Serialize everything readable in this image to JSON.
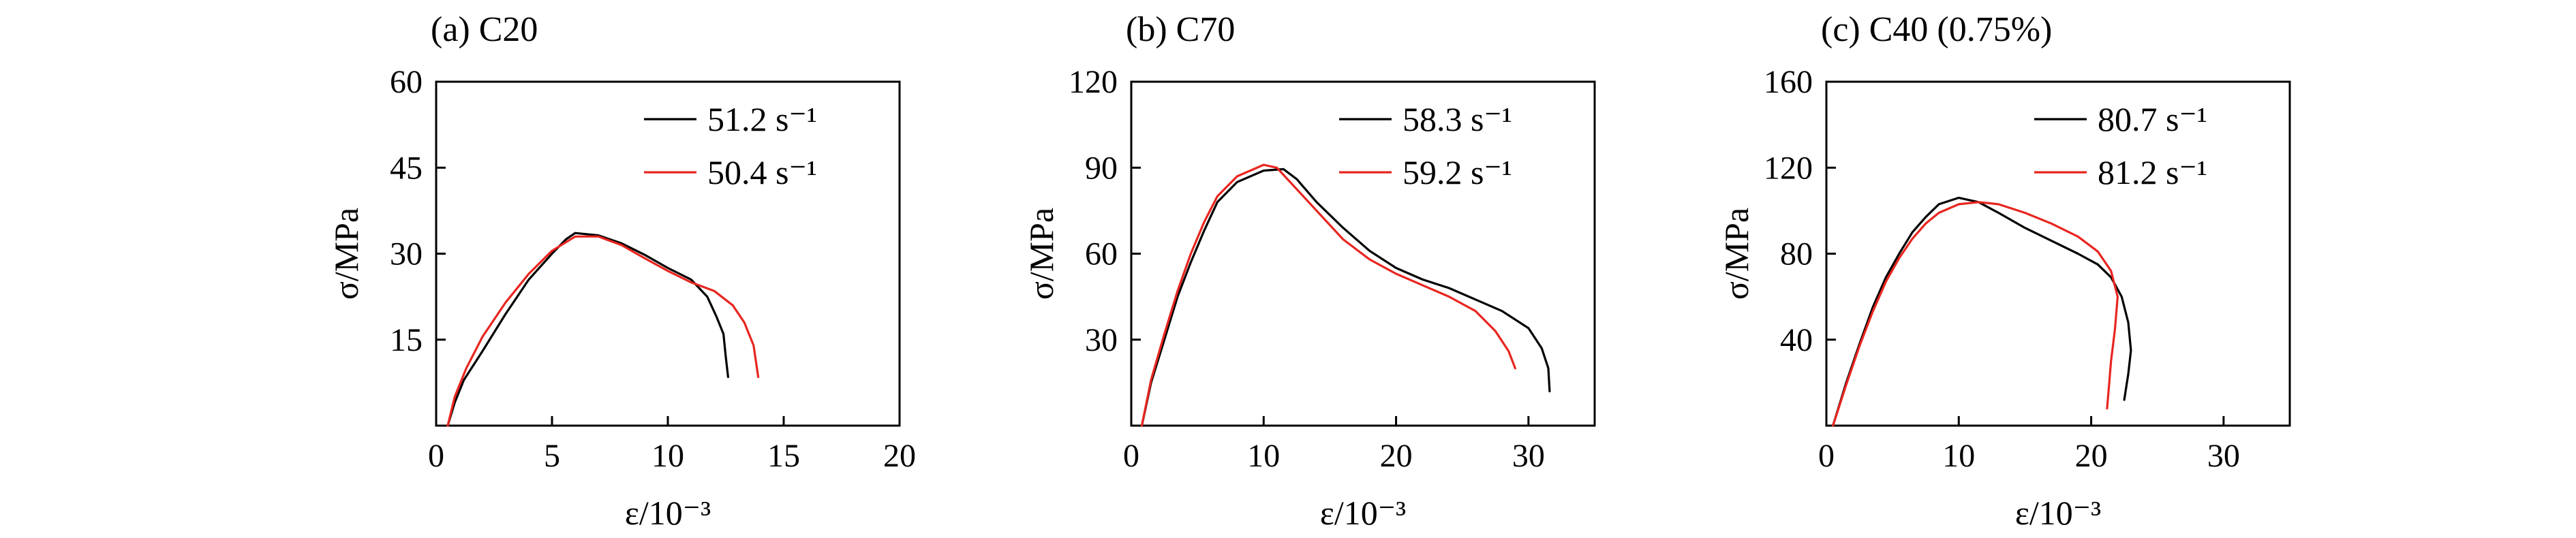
{
  "chart_data": [
    {
      "type": "line",
      "title": "(a) C20",
      "xlabel": "ε/10⁻³",
      "ylabel": "σ/MPa",
      "xlim": [
        0,
        20
      ],
      "ylim": [
        0,
        60
      ],
      "xticks": [
        0,
        5,
        10,
        15,
        20
      ],
      "yticks": [
        15,
        30,
        45,
        60
      ],
      "xtick_labels": [
        "0",
        "5",
        "10",
        "15",
        "20"
      ],
      "ytick_labels": [
        "15",
        "30",
        "45",
        "60"
      ],
      "legend_position": "top-right",
      "grid": false,
      "series": [
        {
          "name": "51.2 s⁻¹",
          "color": "#000000",
          "points": [
            [
              0.5,
              0
            ],
            [
              0.8,
              4
            ],
            [
              1.2,
              8
            ],
            [
              2,
              13
            ],
            [
              3,
              19.5
            ],
            [
              4,
              25.5
            ],
            [
              5,
              30
            ],
            [
              5.6,
              32.5
            ],
            [
              6,
              33.6
            ],
            [
              7,
              33.2
            ],
            [
              8,
              31.8
            ],
            [
              9,
              29.8
            ],
            [
              10,
              27.5
            ],
            [
              11,
              25.5
            ],
            [
              11.7,
              22.5
            ],
            [
              12.1,
              19
            ],
            [
              12.4,
              16
            ],
            [
              12.5,
              12
            ],
            [
              12.6,
              8.5
            ]
          ]
        },
        {
          "name": "50.4 s⁻¹",
          "color": "#e8251f",
          "points": [
            [
              0.5,
              0
            ],
            [
              0.8,
              5
            ],
            [
              1.3,
              10
            ],
            [
              2,
              15.5
            ],
            [
              3,
              21.5
            ],
            [
              4,
              26.5
            ],
            [
              5,
              30.5
            ],
            [
              6,
              33
            ],
            [
              7,
              33
            ],
            [
              8,
              31.5
            ],
            [
              9,
              29.2
            ],
            [
              10,
              27
            ],
            [
              11,
              25
            ],
            [
              12,
              23.5
            ],
            [
              12.8,
              21
            ],
            [
              13.3,
              18
            ],
            [
              13.7,
              14
            ],
            [
              13.9,
              8.5
            ]
          ]
        }
      ]
    },
    {
      "type": "line",
      "title": "(b) C70",
      "xlabel": "ε/10⁻³",
      "ylabel": "σ/MPa",
      "xlim": [
        0,
        35
      ],
      "ylim": [
        0,
        120
      ],
      "xticks": [
        0,
        10,
        20,
        30
      ],
      "yticks": [
        30,
        60,
        90,
        120
      ],
      "xtick_labels": [
        "0",
        "10",
        "20",
        "30"
      ],
      "ytick_labels": [
        "30",
        "60",
        "90",
        "120"
      ],
      "legend_position": "top-right",
      "grid": false,
      "series": [
        {
          "name": "58.3 s⁻¹",
          "color": "#000000",
          "points": [
            [
              0.8,
              0
            ],
            [
              1.5,
              15
            ],
            [
              2.5,
              30
            ],
            [
              3.5,
              45
            ],
            [
              4.5,
              57
            ],
            [
              5.5,
              68
            ],
            [
              6.5,
              78
            ],
            [
              8,
              85
            ],
            [
              10,
              89
            ],
            [
              11.5,
              89.5
            ],
            [
              12.5,
              86
            ],
            [
              14,
              78
            ],
            [
              16,
              69
            ],
            [
              18,
              61
            ],
            [
              20,
              55
            ],
            [
              22,
              51
            ],
            [
              24,
              48
            ],
            [
              26,
              44
            ],
            [
              28,
              40
            ],
            [
              30,
              34
            ],
            [
              31,
              27
            ],
            [
              31.5,
              20
            ],
            [
              31.6,
              12
            ]
          ]
        },
        {
          "name": "59.2 s⁻¹",
          "color": "#e8251f",
          "points": [
            [
              0.8,
              0
            ],
            [
              1.5,
              16
            ],
            [
              2.5,
              32
            ],
            [
              3.5,
              47
            ],
            [
              4.5,
              60
            ],
            [
              5.5,
              71
            ],
            [
              6.5,
              80
            ],
            [
              8,
              87
            ],
            [
              10,
              91
            ],
            [
              11,
              90
            ],
            [
              12,
              85
            ],
            [
              14,
              75
            ],
            [
              16,
              65
            ],
            [
              18,
              58
            ],
            [
              20,
              53
            ],
            [
              22,
              49
            ],
            [
              24,
              45
            ],
            [
              26,
              40
            ],
            [
              27.5,
              33
            ],
            [
              28.5,
              26
            ],
            [
              29,
              20
            ]
          ]
        }
      ]
    },
    {
      "type": "line",
      "title": "(c) C40 (0.75%)",
      "xlabel": "ε/10⁻³",
      "ylabel": "σ/MPa",
      "xlim": [
        0,
        35
      ],
      "ylim": [
        0,
        160
      ],
      "xticks": [
        0,
        10,
        20,
        30
      ],
      "yticks": [
        40,
        80,
        120,
        160
      ],
      "xtick_labels": [
        "0",
        "10",
        "20",
        "30"
      ],
      "ytick_labels": [
        "40",
        "80",
        "120",
        "160"
      ],
      "legend_position": "top-right",
      "grid": false,
      "series": [
        {
          "name": "80.7 s⁻¹",
          "color": "#000000",
          "points": [
            [
              0.5,
              0
            ],
            [
              1.5,
              20
            ],
            [
              2.5,
              38
            ],
            [
              3.5,
              55
            ],
            [
              4.5,
              69
            ],
            [
              5.5,
              80
            ],
            [
              6.5,
              90
            ],
            [
              7.5,
              97
            ],
            [
              8.5,
              103
            ],
            [
              10,
              106
            ],
            [
              11.5,
              104
            ],
            [
              13,
              99
            ],
            [
              15,
              92
            ],
            [
              17,
              86
            ],
            [
              19,
              80
            ],
            [
              20.5,
              75
            ],
            [
              21.5,
              69
            ],
            [
              22.3,
              60
            ],
            [
              22.8,
              48
            ],
            [
              23,
              35
            ],
            [
              22.8,
              24
            ],
            [
              22.5,
              12
            ]
          ]
        },
        {
          "name": "81.2 s⁻¹",
          "color": "#e8251f",
          "points": [
            [
              0.5,
              0
            ],
            [
              1.5,
              19
            ],
            [
              2.5,
              37
            ],
            [
              3.5,
              53
            ],
            [
              4.5,
              67
            ],
            [
              5.5,
              78
            ],
            [
              6.5,
              87
            ],
            [
              7.5,
              94
            ],
            [
              8.5,
              99
            ],
            [
              10,
              103
            ],
            [
              11.5,
              104
            ],
            [
              13,
              103
            ],
            [
              15,
              99
            ],
            [
              17,
              94
            ],
            [
              19,
              88
            ],
            [
              20.5,
              81
            ],
            [
              21.5,
              72
            ],
            [
              22,
              60
            ],
            [
              21.8,
              45
            ],
            [
              21.5,
              30
            ],
            [
              21.3,
              15
            ],
            [
              21.2,
              8
            ]
          ]
        }
      ]
    }
  ]
}
